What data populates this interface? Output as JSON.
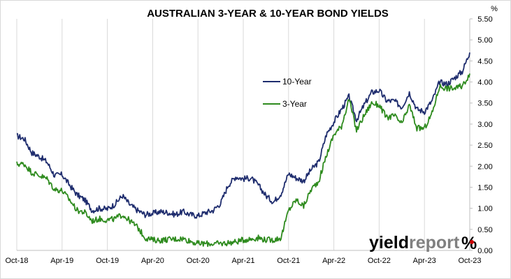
{
  "chart_data": {
    "type": "line",
    "title": "AUSTRALIAN 3-YEAR & 10-YEAR BOND YIELDS",
    "ylabel": "%",
    "xlabel": "",
    "x_ticks": [
      "Oct-18",
      "Apr-19",
      "Oct-19",
      "Apr-20",
      "Oct-20",
      "Apr-21",
      "Oct-21",
      "Apr-22",
      "Oct-22",
      "Apr-23",
      "Oct-23"
    ],
    "y_ticks": [
      "0.00",
      "0.50",
      "1.00",
      "1.50",
      "2.00",
      "2.50",
      "3.00",
      "3.50",
      "4.00",
      "4.50",
      "5.00",
      "5.50"
    ],
    "ylim": [
      0,
      5.5
    ],
    "x_range": [
      "Oct-18",
      "Oct-23"
    ],
    "grid": "vertical",
    "legend_position": "center-right",
    "series": [
      {
        "name": "10-Year",
        "color": "#1f2d6e",
        "values": [
          [
            "Oct-18",
            2.72
          ],
          [
            "Nov-18",
            2.65
          ],
          [
            "Dec-18",
            2.32
          ],
          [
            "Jan-19",
            2.23
          ],
          [
            "Feb-19",
            2.1
          ],
          [
            "Mar-19",
            1.78
          ],
          [
            "Apr-19",
            1.8
          ],
          [
            "May-19",
            1.55
          ],
          [
            "Jun-19",
            1.32
          ],
          [
            "Jul-19",
            1.2
          ],
          [
            "Aug-19",
            0.95
          ],
          [
            "Sep-19",
            1.0
          ],
          [
            "Oct-19",
            0.98
          ],
          [
            "Nov-19",
            1.1
          ],
          [
            "Dec-19",
            1.3
          ],
          [
            "Jan-20",
            1.08
          ],
          [
            "Feb-20",
            0.95
          ],
          [
            "Mar-20",
            0.85
          ],
          [
            "Apr-20",
            0.88
          ],
          [
            "May-20",
            0.92
          ],
          [
            "Jun-20",
            0.9
          ],
          [
            "Jul-20",
            0.85
          ],
          [
            "Aug-20",
            0.92
          ],
          [
            "Sep-20",
            0.85
          ],
          [
            "Oct-20",
            0.82
          ],
          [
            "Nov-20",
            0.9
          ],
          [
            "Dec-20",
            0.95
          ],
          [
            "Jan-21",
            1.12
          ],
          [
            "Feb-21",
            1.55
          ],
          [
            "Mar-21",
            1.75
          ],
          [
            "Apr-21",
            1.7
          ],
          [
            "May-21",
            1.72
          ],
          [
            "Jun-21",
            1.55
          ],
          [
            "Jul-21",
            1.3
          ],
          [
            "Aug-21",
            1.15
          ],
          [
            "Sep-21",
            1.35
          ],
          [
            "Oct-21",
            1.82
          ],
          [
            "Nov-21",
            1.72
          ],
          [
            "Dec-21",
            1.65
          ],
          [
            "Jan-22",
            1.92
          ],
          [
            "Feb-22",
            2.1
          ],
          [
            "Mar-22",
            2.75
          ],
          [
            "Apr-22",
            3.05
          ],
          [
            "May-22",
            3.35
          ],
          [
            "Jun-22",
            3.65
          ],
          [
            "Jul-22",
            3.1
          ],
          [
            "Aug-22",
            3.45
          ],
          [
            "Sep-22",
            3.75
          ],
          [
            "Oct-22",
            3.8
          ],
          [
            "Nov-22",
            3.55
          ],
          [
            "Dec-22",
            3.55
          ],
          [
            "Jan-23",
            3.4
          ],
          [
            "Feb-23",
            3.75
          ],
          [
            "Mar-23",
            3.35
          ],
          [
            "Apr-23",
            3.3
          ],
          [
            "May-23",
            3.55
          ],
          [
            "Jun-23",
            4.0
          ],
          [
            "Jul-23",
            3.95
          ],
          [
            "Aug-23",
            4.1
          ],
          [
            "Sep-23",
            4.25
          ],
          [
            "Oct-23",
            4.7
          ]
        ]
      },
      {
        "name": "3-Year",
        "color": "#2e8b1e",
        "values": [
          [
            "Oct-18",
            2.05
          ],
          [
            "Nov-18",
            2.05
          ],
          [
            "Dec-18",
            1.85
          ],
          [
            "Jan-19",
            1.78
          ],
          [
            "Feb-19",
            1.7
          ],
          [
            "Mar-19",
            1.45
          ],
          [
            "Apr-19",
            1.42
          ],
          [
            "May-19",
            1.2
          ],
          [
            "Jun-19",
            0.95
          ],
          [
            "Jul-19",
            0.9
          ],
          [
            "Aug-19",
            0.7
          ],
          [
            "Sep-19",
            0.75
          ],
          [
            "Oct-19",
            0.72
          ],
          [
            "Nov-19",
            0.75
          ],
          [
            "Dec-19",
            0.85
          ],
          [
            "Jan-20",
            0.7
          ],
          [
            "Feb-20",
            0.55
          ],
          [
            "Mar-20",
            0.3
          ],
          [
            "Apr-20",
            0.25
          ],
          [
            "May-20",
            0.24
          ],
          [
            "Jun-20",
            0.26
          ],
          [
            "Jul-20",
            0.27
          ],
          [
            "Aug-20",
            0.28
          ],
          [
            "Sep-20",
            0.22
          ],
          [
            "Oct-20",
            0.16
          ],
          [
            "Nov-20",
            0.16
          ],
          [
            "Dec-20",
            0.16
          ],
          [
            "Jan-21",
            0.16
          ],
          [
            "Feb-21",
            0.18
          ],
          [
            "Mar-21",
            0.2
          ],
          [
            "Apr-21",
            0.25
          ],
          [
            "May-21",
            0.27
          ],
          [
            "Jun-21",
            0.3
          ],
          [
            "Jul-21",
            0.25
          ],
          [
            "Aug-21",
            0.25
          ],
          [
            "Sep-21",
            0.3
          ],
          [
            "Oct-21",
            0.95
          ],
          [
            "Nov-21",
            1.2
          ],
          [
            "Dec-21",
            1.05
          ],
          [
            "Jan-22",
            1.45
          ],
          [
            "Feb-22",
            1.65
          ],
          [
            "Mar-22",
            2.25
          ],
          [
            "Apr-22",
            2.75
          ],
          [
            "May-22",
            2.95
          ],
          [
            "Jun-22",
            3.6
          ],
          [
            "Jul-22",
            2.85
          ],
          [
            "Aug-22",
            3.2
          ],
          [
            "Sep-22",
            3.5
          ],
          [
            "Oct-22",
            3.45
          ],
          [
            "Nov-22",
            3.15
          ],
          [
            "Dec-22",
            3.2
          ],
          [
            "Jan-23",
            3.0
          ],
          [
            "Feb-23",
            3.45
          ],
          [
            "Mar-23",
            2.9
          ],
          [
            "Apr-23",
            2.9
          ],
          [
            "May-23",
            3.25
          ],
          [
            "Jun-23",
            3.9
          ],
          [
            "Jul-23",
            3.85
          ],
          [
            "Aug-23",
            3.85
          ],
          [
            "Sep-23",
            3.9
          ],
          [
            "Oct-23",
            4.2
          ]
        ]
      }
    ]
  },
  "legend": {
    "items": [
      {
        "label": "10-Year",
        "color": "#1f2d6e"
      },
      {
        "label": "3-Year",
        "color": "#2e8b1e"
      }
    ]
  },
  "logo": {
    "text_yield": "yield",
    "text_report": "report",
    "text_percent": "%",
    "color_yield": "#000000",
    "color_report": "#808080",
    "color_accent": "#cc0000"
  }
}
